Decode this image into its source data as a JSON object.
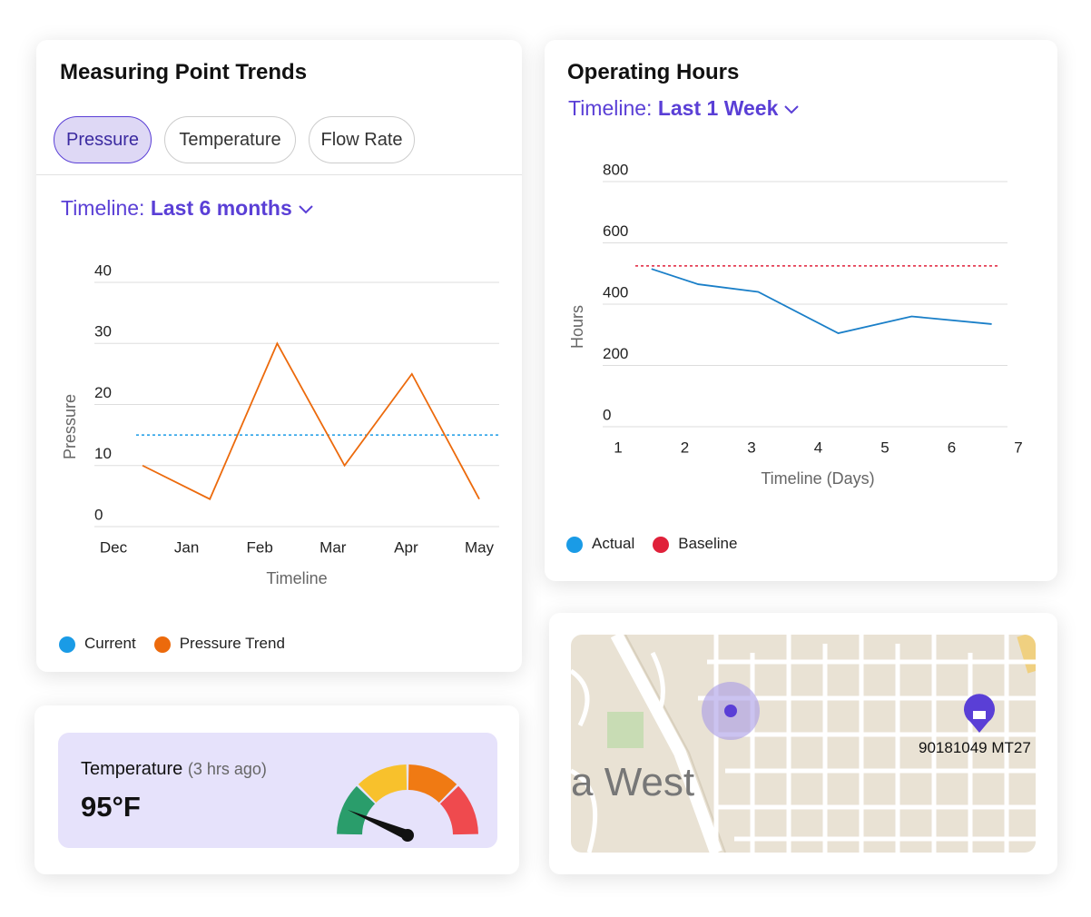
{
  "trends_card": {
    "title": "Measuring Point Trends",
    "tabs": [
      "Pressure",
      "Temperature",
      "Flow Rate"
    ],
    "timeline": {
      "label": "Timeline:",
      "value": "Last 6 months"
    },
    "chart": {
      "type": "line",
      "x_label": "Timeline",
      "y_label": "Pressure",
      "categories": [
        "Dec",
        "Jan",
        "Feb",
        "Mar",
        "Apr",
        "May"
      ],
      "ylim": [
        0,
        40
      ],
      "yticks": [
        0,
        10,
        20,
        30,
        40
      ],
      "grid": true,
      "series": [
        {
          "name": "Current",
          "color": "#1a9be6",
          "value": 15,
          "style": "dotted"
        },
        {
          "name": "Pressure Trend",
          "color": "#ec6a0c",
          "values": [
            10,
            4.5,
            30,
            10,
            25,
            4.5
          ]
        }
      ]
    }
  },
  "hours_card": {
    "title": "Operating Hours",
    "timeline": {
      "label": "Timeline:",
      "value": "Last 1 Week"
    },
    "chart": {
      "type": "line",
      "x_label": "Timeline (Days)",
      "y_label": "Hours",
      "x": [
        1.5,
        2.2,
        3.1,
        4.3,
        5.4,
        6.6
      ],
      "xlim": [
        1,
        7
      ],
      "xticks": [
        1,
        2,
        3,
        4,
        5,
        6,
        7
      ],
      "ylim": [
        0,
        800
      ],
      "yticks": [
        0,
        200,
        400,
        600,
        800
      ],
      "grid": true,
      "series": [
        {
          "name": "Actual",
          "color": "#1a7fc8",
          "legend_color": "#1a9be6",
          "values": [
            515,
            465,
            440,
            305,
            360,
            335
          ]
        },
        {
          "name": "Baseline",
          "color": "#e0213a",
          "value": 525,
          "style": "dotted"
        }
      ]
    }
  },
  "temperature_card": {
    "label": "Temperature",
    "age": "(3 hrs ago)",
    "value": "95°F"
  },
  "map_card": {
    "place_label": "a West",
    "asset_label": "90181049 MT27"
  }
}
